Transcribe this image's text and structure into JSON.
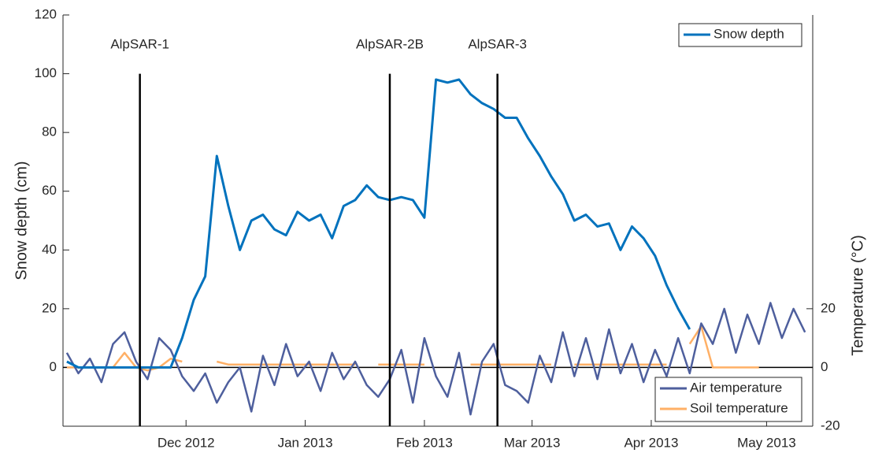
{
  "chart_data": {
    "type": "line",
    "ylabel": "Snow depth (cm)",
    "y2label": "Temperature (°C)",
    "x": [
      "2012-10-31",
      "2012-11-03",
      "2012-11-06",
      "2012-11-09",
      "2012-11-12",
      "2012-11-15",
      "2012-11-18",
      "2012-11-21",
      "2012-11-24",
      "2012-11-27",
      "2012-11-30",
      "2012-12-03",
      "2012-12-06",
      "2012-12-09",
      "2012-12-12",
      "2012-12-15",
      "2012-12-18",
      "2012-12-21",
      "2012-12-24",
      "2012-12-27",
      "2012-12-30",
      "2013-01-02",
      "2013-01-05",
      "2013-01-08",
      "2013-01-11",
      "2013-01-14",
      "2013-01-17",
      "2013-01-20",
      "2013-01-23",
      "2013-01-26",
      "2013-01-29",
      "2013-02-01",
      "2013-02-04",
      "2013-02-07",
      "2013-02-10",
      "2013-02-13",
      "2013-02-16",
      "2013-02-19",
      "2013-02-22",
      "2013-02-25",
      "2013-02-28",
      "2013-03-03",
      "2013-03-06",
      "2013-03-09",
      "2013-03-12",
      "2013-03-15",
      "2013-03-18",
      "2013-03-21",
      "2013-03-24",
      "2013-03-27",
      "2013-03-30",
      "2013-04-02",
      "2013-04-05",
      "2013-04-08",
      "2013-04-11",
      "2013-04-14",
      "2013-04-17",
      "2013-04-20",
      "2013-04-23",
      "2013-04-26",
      "2013-04-29",
      "2013-05-02",
      "2013-05-05",
      "2013-05-08",
      "2013-05-11"
    ],
    "series": [
      {
        "name": "Snow depth",
        "color": "#0072bd",
        "axis": "y",
        "values": [
          2,
          0,
          0,
          0,
          0,
          0,
          0,
          0,
          0,
          0,
          10,
          23,
          31,
          72,
          55,
          40,
          50,
          52,
          47,
          45,
          53,
          50,
          52,
          44,
          55,
          57,
          62,
          58,
          57,
          58,
          57,
          51,
          98,
          97,
          98,
          93,
          90,
          88,
          85,
          85,
          78,
          72,
          65,
          59,
          50,
          52,
          48,
          49,
          40,
          48,
          44,
          38,
          28,
          20,
          13,
          null,
          null,
          null,
          null,
          null,
          null,
          null,
          null,
          null,
          null
        ]
      },
      {
        "name": "Air temperature",
        "color": "#4e5f9d",
        "axis": "y2",
        "values": [
          5,
          -2,
          3,
          -5,
          8,
          12,
          2,
          -4,
          10,
          6,
          -3,
          -8,
          -2,
          -12,
          -5,
          0,
          -15,
          4,
          -6,
          8,
          -3,
          2,
          -8,
          5,
          -4,
          2,
          -6,
          -10,
          -4,
          6,
          -12,
          10,
          -3,
          -10,
          5,
          -16,
          2,
          8,
          -6,
          -8,
          -12,
          4,
          -5,
          12,
          -3,
          10,
          -4,
          13,
          -2,
          8,
          -5,
          6,
          -3,
          10,
          -2,
          15,
          8,
          20,
          5,
          18,
          8,
          22,
          10,
          20,
          12
        ]
      },
      {
        "name": "Soil temperature",
        "color": "#ffb066",
        "axis": "y2",
        "values": [
          0,
          0,
          0,
          0,
          0,
          5,
          0,
          -1,
          0,
          3,
          2,
          null,
          null,
          2,
          1,
          1,
          1,
          1,
          1,
          1,
          1,
          1,
          1,
          1,
          1,
          1,
          null,
          1,
          1,
          1,
          1,
          1,
          null,
          null,
          null,
          1,
          1,
          1,
          1,
          1,
          1,
          1,
          1,
          null,
          1,
          1,
          1,
          1,
          1,
          1,
          1,
          1,
          1,
          null,
          8,
          14,
          0,
          0,
          0,
          0,
          0,
          null,
          null,
          null,
          null
        ]
      }
    ],
    "xlim": [
      "2012-10-30",
      "2013-05-13"
    ],
    "xticks": [
      {
        "value": "2012-12-01",
        "label": "Dec 2012"
      },
      {
        "value": "2013-01-01",
        "label": "Jan 2013"
      },
      {
        "value": "2013-02-01",
        "label": "Feb 2013"
      },
      {
        "value": "2013-03-01",
        "label": "Mar 2013"
      },
      {
        "value": "2013-04-01",
        "label": "Apr 2013"
      },
      {
        "value": "2013-05-01",
        "label": "May 2013"
      }
    ],
    "ylim": [
      -20,
      120
    ],
    "yticks": [
      0,
      20,
      40,
      60,
      80,
      100,
      120
    ],
    "y2lim": [
      -20,
      120
    ],
    "y2ticks": [
      -20,
      0,
      20
    ],
    "annotations": [
      {
        "text": "AlpSAR-1",
        "x": "2012-11-19",
        "y": 100
      },
      {
        "text": "AlpSAR-2B",
        "x": "2013-01-23",
        "y": 100
      },
      {
        "text": "AlpSAR-3",
        "x": "2013-02-20",
        "y": 100
      }
    ],
    "legend": "upper right",
    "y2_legend": "lower right"
  }
}
